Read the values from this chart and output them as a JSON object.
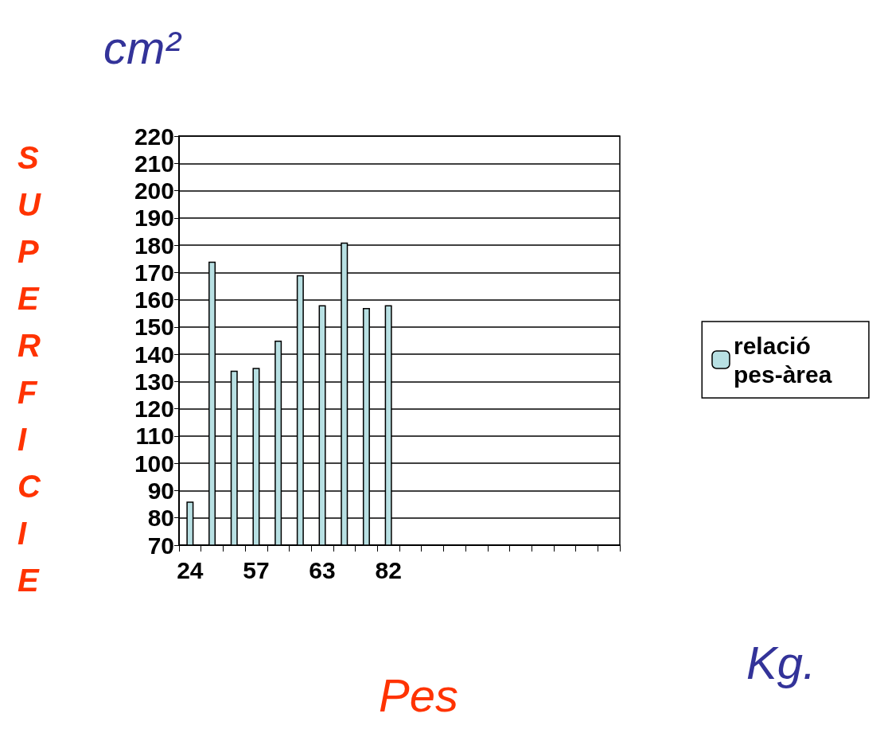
{
  "chart_data": {
    "type": "bar",
    "ylabel": "SUPERFICIE",
    "xlabel": "Pes",
    "annotations": [
      "cm²",
      "Kg."
    ],
    "categories": [
      "24",
      null,
      null,
      "57",
      null,
      null,
      "63",
      null,
      null,
      "82",
      null,
      null,
      null,
      null,
      null,
      null,
      null,
      null,
      null,
      null
    ],
    "series": [
      {
        "name": "relació pes-àrea",
        "color": "#b8e0e3",
        "values": [
          86,
          174,
          134,
          135,
          145,
          169,
          158,
          181,
          157,
          158,
          null,
          null,
          null,
          null,
          null,
          null,
          null,
          null,
          null,
          null
        ]
      }
    ],
    "ylim": [
      70,
      220
    ],
    "yticks": [
      70,
      80,
      90,
      100,
      110,
      120,
      130,
      140,
      150,
      160,
      170,
      180,
      190,
      200,
      210,
      220
    ],
    "grid": "y",
    "legend": "right"
  }
}
